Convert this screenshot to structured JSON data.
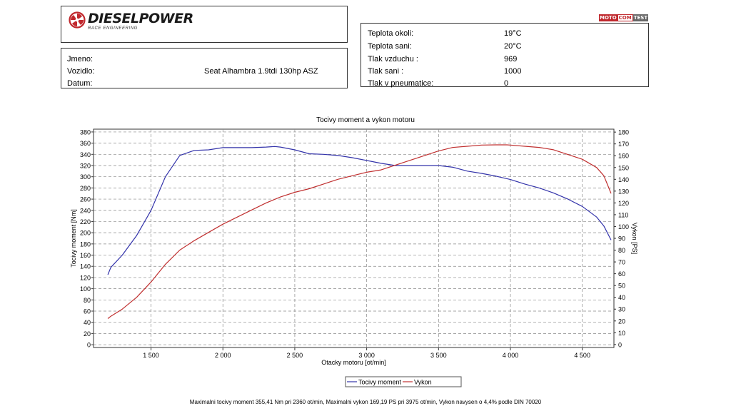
{
  "brand": {
    "name": "DIESELPOWER",
    "subtitle": "RACE ENGINEERING",
    "badge": [
      "MOTO",
      "COM",
      "TEST"
    ]
  },
  "vehicle_info": {
    "rows": [
      {
        "label": "Jmeno:",
        "value": ""
      },
      {
        "label": "Vozidlo:",
        "value": "Seat Alhambra 1.9tdi 130hp ASZ"
      },
      {
        "label": "Datum:",
        "value": ""
      }
    ]
  },
  "conditions": {
    "rows": [
      {
        "label": "Teplota okoli:",
        "value": "19°C"
      },
      {
        "label": "Teplota sani:",
        "value": "20°C"
      },
      {
        "label": "Tlak vzduchu :",
        "value": "969"
      },
      {
        "label": "Tlak sani :",
        "value": "1000"
      },
      {
        "label": "Tlak v pneumatice:",
        "value": "0"
      }
    ]
  },
  "footer_text": "Maximalni tocivy moment 355,41 Nm pri 2360 ot/min,  Maximalni vykon 169,19 PS pri 3975 ot/min,  Vykon navysen o 4,4% podle DIN 70020",
  "chart_data": {
    "type": "line",
    "title": "Tocivy moment a vykon motoru",
    "xlabel": "Otacky motoru [ot/min]",
    "ylabel": "Tocivy moment [Nm]",
    "y2label": "Vykon [PS]",
    "xlim": [
      1100,
      4720
    ],
    "ylim": [
      -5,
      385
    ],
    "y2lim": [
      -2.5,
      182.5
    ],
    "x_ticks": [
      1500,
      2000,
      2500,
      3000,
      3500,
      4000,
      4500
    ],
    "x_tick_labels": [
      "1 500",
      "2 000",
      "2 500",
      "3 000",
      "3 500",
      "4 000",
      "4 500"
    ],
    "y_ticks": [
      0,
      20,
      40,
      60,
      80,
      100,
      120,
      140,
      160,
      180,
      200,
      220,
      240,
      260,
      280,
      300,
      320,
      340,
      360,
      380
    ],
    "y2_ticks": [
      0,
      10,
      20,
      30,
      40,
      50,
      60,
      70,
      80,
      90,
      100,
      110,
      120,
      130,
      140,
      150,
      160,
      170,
      180
    ],
    "grid": true,
    "legend_position": "bottom-center",
    "series": [
      {
        "name": "Tocivy moment",
        "axis": "left",
        "color": "#3333aa",
        "x": [
          1200,
          1220,
          1300,
          1400,
          1500,
          1600,
          1700,
          1800,
          1900,
          2000,
          2100,
          2200,
          2300,
          2360,
          2400,
          2500,
          2600,
          2700,
          2800,
          2900,
          3000,
          3100,
          3200,
          3300,
          3400,
          3500,
          3600,
          3700,
          3800,
          3900,
          4000,
          4100,
          4200,
          4300,
          4400,
          4500,
          4600,
          4650,
          4700
        ],
        "values": [
          125,
          138,
          160,
          195,
          240,
          300,
          338,
          347,
          348,
          352,
          352,
          352,
          353,
          354,
          353,
          348,
          341,
          340,
          338,
          334,
          329,
          324,
          320,
          320,
          320,
          320,
          317,
          310,
          306,
          301,
          295,
          287,
          280,
          271,
          260,
          247,
          228,
          212,
          187
        ]
      },
      {
        "name": "Vykon",
        "axis": "right",
        "color": "#c03030",
        "x": [
          1200,
          1220,
          1300,
          1400,
          1500,
          1600,
          1700,
          1800,
          1900,
          2000,
          2100,
          2200,
          2300,
          2400,
          2500,
          2600,
          2700,
          2800,
          2900,
          3000,
          3100,
          3200,
          3300,
          3400,
          3500,
          3600,
          3700,
          3800,
          3900,
          3975,
          4000,
          4100,
          4200,
          4300,
          4400,
          4500,
          4600,
          4650,
          4700
        ],
        "values": [
          22,
          24,
          30,
          40,
          53,
          68,
          80,
          88,
          95,
          102,
          108,
          114,
          120,
          125,
          129,
          132,
          136,
          140,
          143,
          146,
          148,
          152,
          156,
          160,
          164,
          167,
          168,
          169,
          169.2,
          169.2,
          169,
          168,
          167,
          165,
          161,
          157,
          150,
          143,
          128
        ]
      }
    ]
  }
}
